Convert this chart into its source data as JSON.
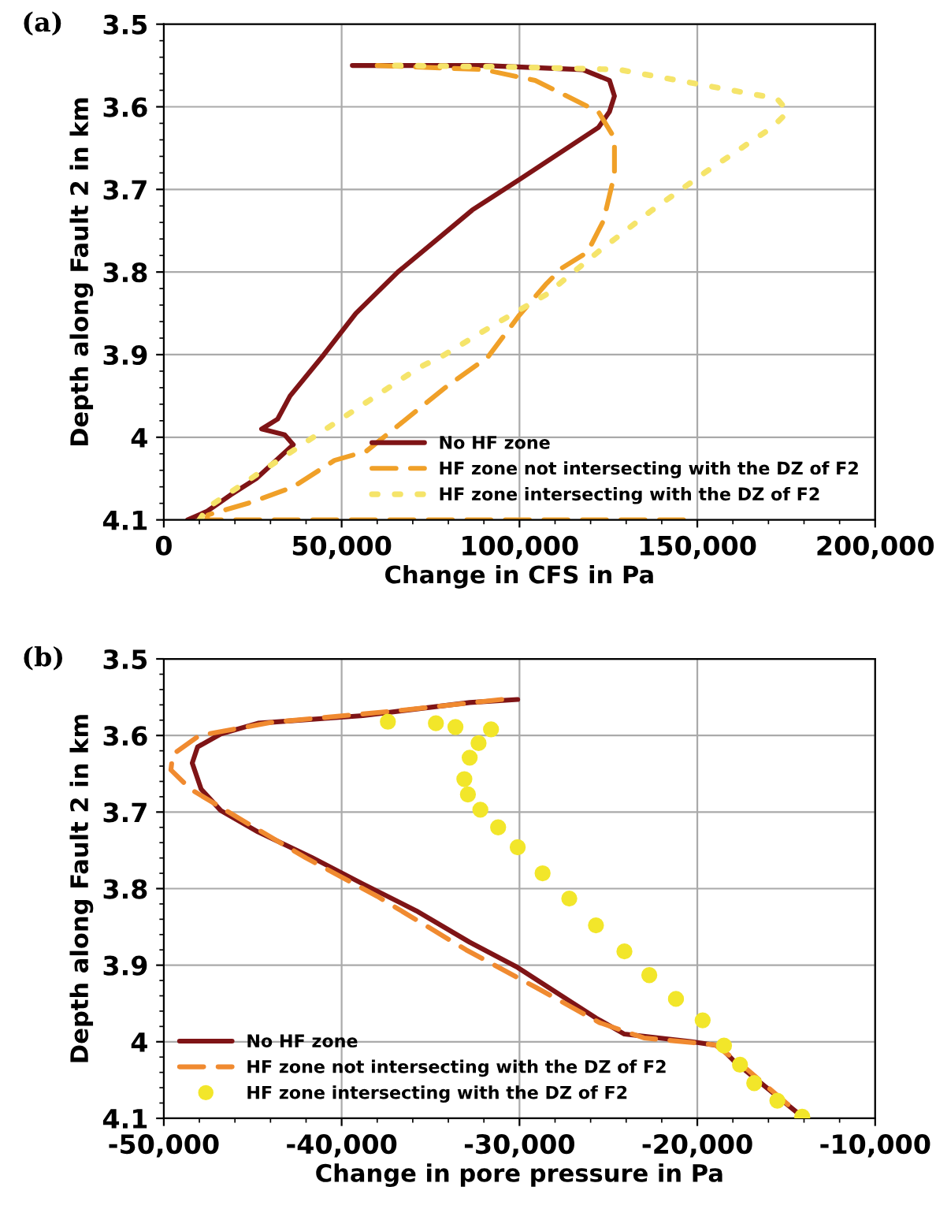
{
  "chart_data": [
    {
      "type": "line",
      "annotations": [
        "(a)"
      ],
      "xlabel": "Change in CFS in Pa",
      "ylabel": "Depth along Fault 2 in km",
      "xlim": [
        0,
        200000
      ],
      "xticks": [
        0,
        {
          "value": 50000,
          "label": "50,000"
        },
        {
          "value": 100000,
          "label": "100,000"
        },
        {
          "value": 150000,
          "label": "150,000"
        },
        {
          "value": 200000,
          "label": "200,000"
        }
      ],
      "ylim": [
        4.1,
        3.5
      ],
      "yticks": [
        3.5,
        3.6,
        3.7,
        3.8,
        3.9,
        4,
        4.1
      ],
      "grid": true,
      "legend": "bottom right",
      "series": [
        {
          "name": "No HF zone",
          "color": "#7f1416",
          "line_style": "solid",
          "x": [
            53000,
            90000,
            117800,
            125300,
            126700,
            125300,
            122200,
            100000,
            86700,
            77800,
            65800,
            54000,
            45000,
            35500,
            32000,
            27500,
            34000,
            36400,
            26000,
            18700,
            12000,
            6700
          ],
          "values": [
            3.55,
            3.55,
            3.555,
            3.568,
            3.587,
            3.606,
            3.625,
            3.688,
            3.725,
            3.757,
            3.8,
            3.85,
            3.9,
            3.95,
            3.978,
            3.99,
            3.997,
            4.009,
            4.05,
            4.07,
            4.09,
            4.1
          ]
        },
        {
          "name": "HF zone not intersecting with the DZ of F2",
          "color": "#f0a028",
          "line_style": "dashed",
          "x": [
            60000,
            90000,
            104400,
            122200,
            126700,
            126700,
            123600,
            119100,
            112000,
            107600,
            100000,
            91100,
            79100,
            56900,
            48000,
            36400,
            24400,
            12400,
            12000,
            150000
          ],
          "values": [
            3.55,
            3.555,
            3.568,
            3.606,
            3.638,
            3.682,
            3.738,
            3.776,
            3.795,
            3.814,
            3.852,
            3.903,
            3.94,
            4.017,
            4.028,
            4.06,
            4.079,
            4.094,
            4.1,
            4.1
          ]
        },
        {
          "name": "HF zone intersecting with the DZ of F2",
          "color": "#f5e46a",
          "line_style": "dotted",
          "x": [
            65000,
            100000,
            128000,
            172400,
            175500,
            171000,
            152000,
            137000,
            122000,
            107600,
            92400,
            77800,
            72000,
            49800,
            27600,
            12400,
            10000
          ],
          "values": [
            3.55,
            3.552,
            3.555,
            3.59,
            3.606,
            3.625,
            3.68,
            3.726,
            3.776,
            3.827,
            3.865,
            3.903,
            3.915,
            3.978,
            4.041,
            4.085,
            4.1
          ]
        }
      ]
    },
    {
      "type": "line",
      "annotations": [
        "(b)"
      ],
      "xlabel": "Change in pore pressure in Pa",
      "ylabel": "Depth along Fault 2 in km",
      "xlim": [
        -50000,
        -10000
      ],
      "xticks": [
        {
          "value": -50000,
          "label": "-50,000"
        },
        {
          "value": -40000,
          "label": "-40,000"
        },
        {
          "value": -30000,
          "label": "-30,000"
        },
        {
          "value": -20000,
          "label": "-20,000"
        },
        {
          "value": -10000,
          "label": "-10,000"
        }
      ],
      "ylim": [
        4.1,
        3.5
      ],
      "yticks": [
        3.5,
        3.6,
        3.7,
        3.8,
        3.9,
        4,
        4.1
      ],
      "grid": true,
      "legend": "bottom left",
      "series": [
        {
          "name": "No HF zone",
          "color": "#7f1416",
          "line_style": "solid",
          "x": [
            -30100,
            -32800,
            -38800,
            -44700,
            -46800,
            -48100,
            -48400,
            -47900,
            -46800,
            -44700,
            -41700,
            -38800,
            -35800,
            -32800,
            -30100,
            -25700,
            -24100,
            -20300,
            -18800,
            -17900,
            -16100,
            -14100
          ],
          "values": [
            3.553,
            3.557,
            3.574,
            3.584,
            3.598,
            3.615,
            3.636,
            3.67,
            3.698,
            3.726,
            3.759,
            3.794,
            3.829,
            3.87,
            3.903,
            3.969,
            3.99,
            4.0,
            4.005,
            4.026,
            4.06,
            4.098
          ]
        },
        {
          "name": "HF zone not intersecting with the DZ of F2",
          "color": "#f08a30",
          "line_style": "dashed",
          "x": [
            -31000,
            -37000,
            -44000,
            -48000,
            -49500,
            -49600,
            -48500,
            -46000,
            -42000,
            -38000,
            -33000,
            -29000,
            -25500,
            -23000,
            -19000,
            -17500,
            -15500,
            -14000
          ],
          "values": [
            3.553,
            3.568,
            3.583,
            3.6,
            3.625,
            3.645,
            3.67,
            3.705,
            3.76,
            3.81,
            3.88,
            3.93,
            3.975,
            3.995,
            4.004,
            4.03,
            4.07,
            4.1
          ]
        },
        {
          "name": "HF zone intersecting with the DZ of F2",
          "type": "scatter",
          "marker": "circle",
          "color": "#f2e62a",
          "x": [
            -37400,
            -34700,
            -33600,
            -31600,
            -32300,
            -32800,
            -33100,
            -32900,
            -32200,
            -31200,
            -30100,
            -28700,
            -27200,
            -25700,
            -24100,
            -22700,
            -21200,
            -19700,
            -18500,
            -17600,
            -16800,
            -15500,
            -14100
          ],
          "values": [
            3.582,
            3.584,
            3.589,
            3.592,
            3.61,
            3.629,
            3.657,
            3.677,
            3.697,
            3.72,
            3.746,
            3.78,
            3.813,
            3.848,
            3.882,
            3.913,
            3.944,
            3.972,
            4.005,
            4.03,
            4.054,
            4.077,
            4.098
          ]
        }
      ]
    }
  ]
}
